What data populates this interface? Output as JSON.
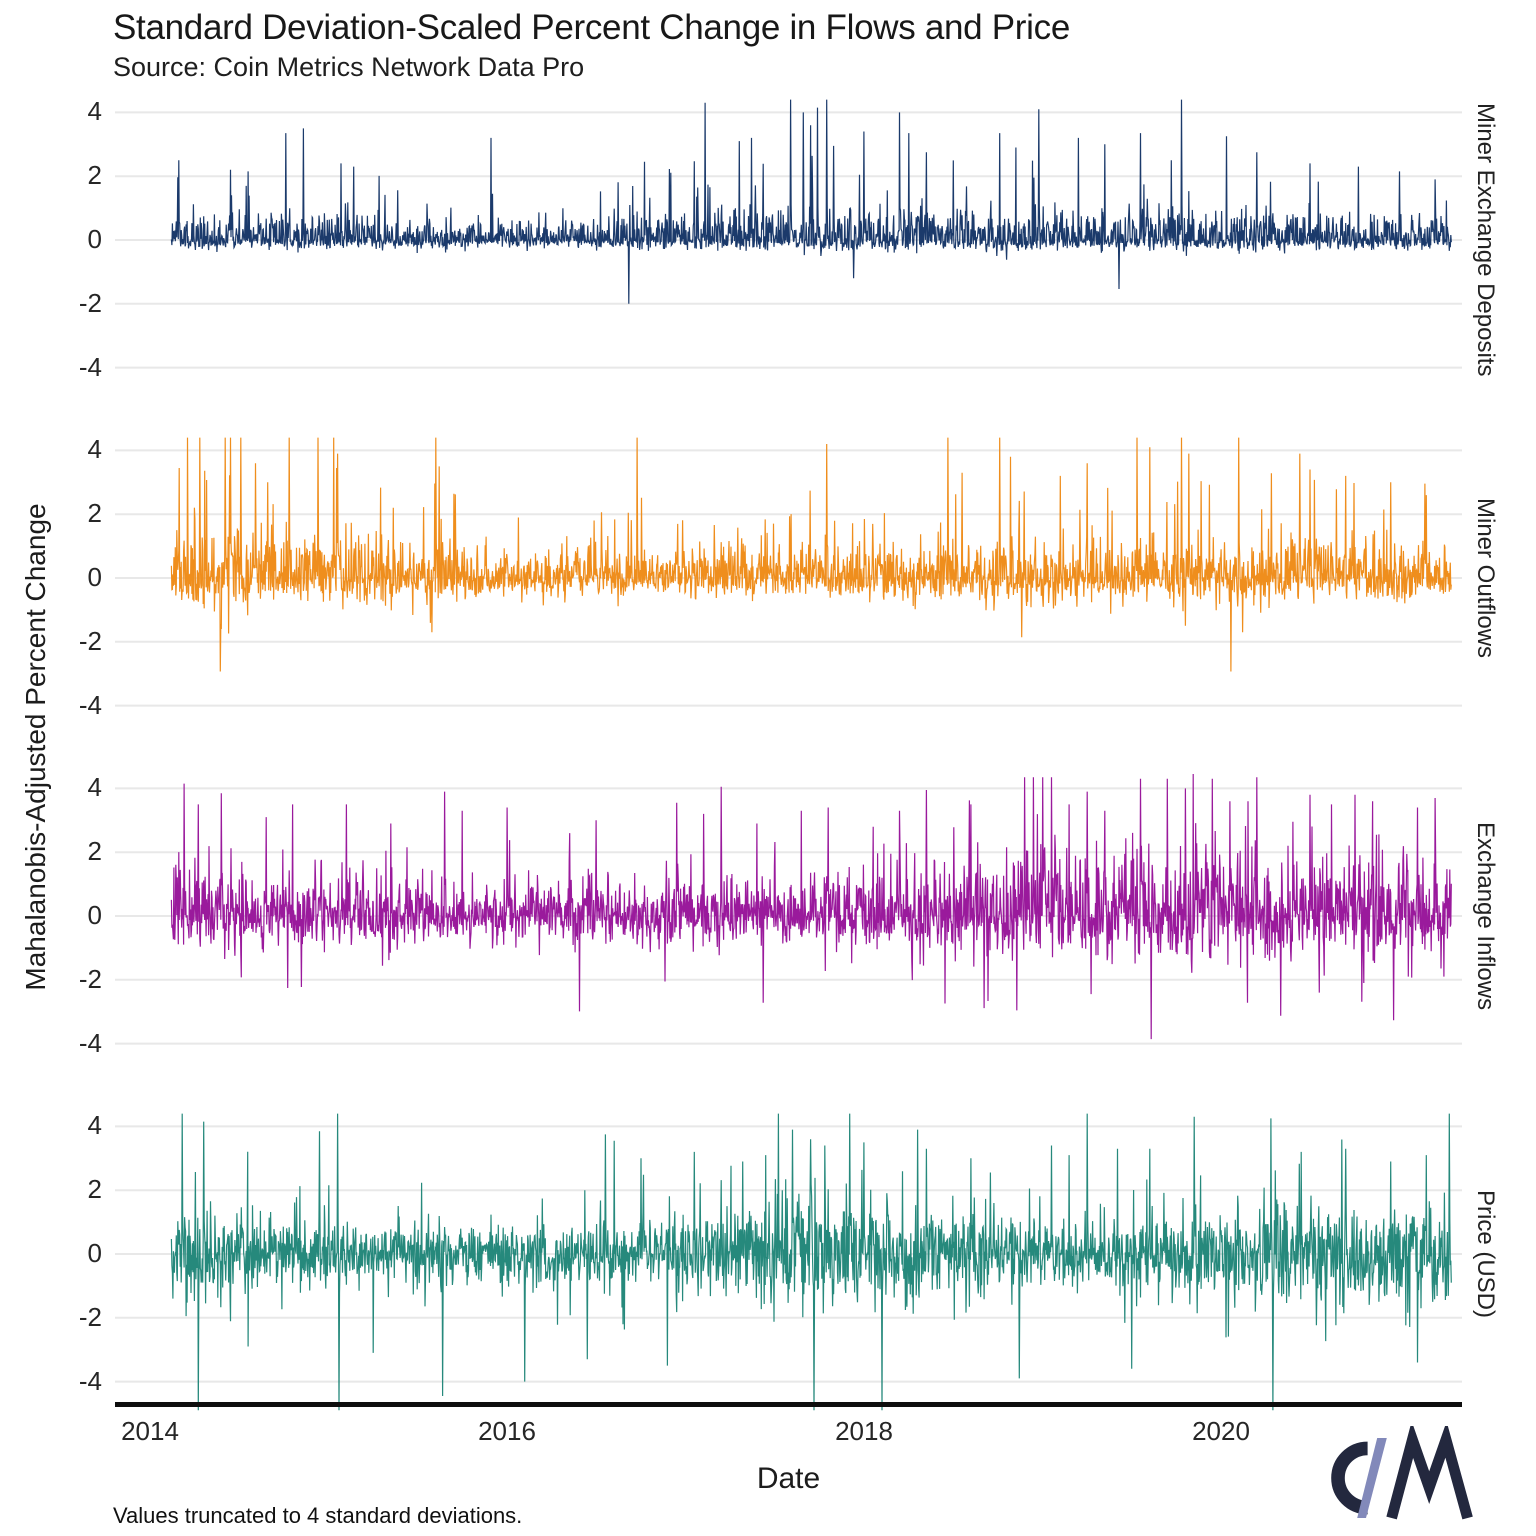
{
  "chart_data": {
    "type": "line",
    "title": "Standard Deviation-Scaled Percent Change in Flows and Price",
    "source": "Source: Coin Metrics Network Data Pro",
    "xlabel": "Date",
    "ylabel": "Mahalanobis-Adjusted Percent Change",
    "note": "Values truncated to 4 standard deviations.",
    "x_ticks": [
      2014,
      2016,
      2018,
      2020
    ],
    "y_ticks": [
      4,
      2,
      0,
      -2,
      -4
    ],
    "x_data_range": [
      2014.12,
      2021.29
    ],
    "y_range": [
      -4.75,
      4.75
    ],
    "cap": 4.45,
    "n_points": 2620,
    "grid_color": "#e8e8e8",
    "series": [
      {
        "name": "Miner Exchange Deposits",
        "color": "#1b3a6b",
        "seed": 101,
        "pos_scale": 0.4,
        "neg_scale": 0.15,
        "spike_prob": 0.05,
        "spike_mag": 2.0,
        "neg_spike_share": 0.04,
        "envelope": [
          [
            2014.1,
            1.0
          ],
          [
            2014.9,
            1.05
          ],
          [
            2015.3,
            0.8
          ],
          [
            2016.3,
            0.75
          ],
          [
            2016.8,
            1.05
          ],
          [
            2017.2,
            1.3
          ],
          [
            2018.3,
            1.25
          ],
          [
            2019.0,
            1.15
          ],
          [
            2020.0,
            1.05
          ],
          [
            2021.3,
            0.95
          ]
        ],
        "spikes": [
          [
            2014.16,
            2.5
          ],
          [
            2014.45,
            2.2
          ],
          [
            2014.55,
            2.15
          ],
          [
            2014.76,
            3.35
          ],
          [
            2014.86,
            3.5
          ],
          [
            2015.07,
            2.4
          ],
          [
            2015.14,
            2.3
          ],
          [
            2015.91,
            3.2
          ],
          [
            2016.77,
            2.45
          ],
          [
            2017.11,
            4.3
          ],
          [
            2017.3,
            3.1
          ],
          [
            2017.37,
            3.2
          ],
          [
            2017.59,
            4.4
          ],
          [
            2017.66,
            4.0
          ],
          [
            2017.7,
            3.6
          ],
          [
            2017.74,
            4.15
          ],
          [
            2017.79,
            4.4
          ],
          [
            2017.83,
            2.95
          ],
          [
            2018.0,
            3.4
          ],
          [
            2018.2,
            4.0
          ],
          [
            2018.25,
            3.35
          ],
          [
            2018.35,
            2.75
          ],
          [
            2018.76,
            3.35
          ],
          [
            2018.85,
            2.9
          ],
          [
            2018.98,
            4.1
          ],
          [
            2019.2,
            3.2
          ],
          [
            2019.35,
            3.0
          ],
          [
            2019.55,
            3.35
          ],
          [
            2019.72,
            2.5
          ],
          [
            2019.78,
            4.4
          ],
          [
            2020.03,
            3.25
          ],
          [
            2020.2,
            2.75
          ],
          [
            2020.5,
            2.4
          ],
          [
            2020.77,
            2.3
          ],
          [
            2021.0,
            2.15
          ],
          [
            2021.2,
            1.9
          ]
        ]
      },
      {
        "name": "Miner Outflows",
        "color": "#ef8e1d",
        "seed": 202,
        "pos_scale": 0.5,
        "neg_scale": 0.32,
        "spike_prob": 0.08,
        "spike_mag": 2.4,
        "neg_spike_share": 0.12,
        "envelope": [
          [
            2014.1,
            1.5
          ],
          [
            2015.2,
            1.3
          ],
          [
            2016.0,
            1.0
          ],
          [
            2016.6,
            0.85
          ],
          [
            2017.3,
            0.95
          ],
          [
            2018.0,
            1.0
          ],
          [
            2019.0,
            1.1
          ],
          [
            2019.8,
            1.2
          ],
          [
            2020.5,
            1.15
          ],
          [
            2021.3,
            1.05
          ]
        ],
        "spikes": [
          [
            2014.21,
            4.4
          ],
          [
            2014.28,
            4.4
          ],
          [
            2014.42,
            4.4
          ],
          [
            2014.45,
            4.4
          ],
          [
            2014.51,
            4.4
          ],
          [
            2014.59,
            3.6
          ],
          [
            2014.78,
            4.4
          ],
          [
            2014.94,
            4.4
          ],
          [
            2015.03,
            4.4
          ],
          [
            2015.05,
            3.9
          ],
          [
            2015.6,
            4.4
          ],
          [
            2015.62,
            3.5
          ],
          [
            2016.73,
            4.4
          ],
          [
            2017.79,
            4.2
          ],
          [
            2018.47,
            4.4
          ],
          [
            2018.55,
            3.3
          ],
          [
            2018.76,
            4.4
          ],
          [
            2018.82,
            3.8
          ],
          [
            2019.1,
            3.2
          ],
          [
            2019.25,
            3.6
          ],
          [
            2019.53,
            4.4
          ],
          [
            2019.6,
            4.1
          ],
          [
            2019.78,
            4.4
          ],
          [
            2019.82,
            3.9
          ],
          [
            2020.1,
            4.4
          ],
          [
            2020.44,
            3.9
          ],
          [
            2020.5,
            3.4
          ],
          [
            2020.7,
            3.2
          ],
          [
            2020.95,
            3.0
          ],
          [
            2021.15,
            2.6
          ],
          [
            2014.4,
            -1.6
          ],
          [
            2015.58,
            -1.7
          ],
          [
            2019.8,
            -1.5
          ],
          [
            2020.12,
            -1.7
          ]
        ]
      },
      {
        "name": "Exchange Inflows",
        "color": "#9a1a9c",
        "seed": 303,
        "pos_scale": 0.6,
        "neg_scale": 0.45,
        "spike_prob": 0.1,
        "spike_mag": 2.2,
        "neg_spike_share": 0.3,
        "envelope": [
          [
            2014.1,
            1.1
          ],
          [
            2015.0,
            0.95
          ],
          [
            2016.0,
            0.85
          ],
          [
            2017.0,
            0.95
          ],
          [
            2018.0,
            1.05
          ],
          [
            2018.8,
            1.45
          ],
          [
            2019.6,
            1.55
          ],
          [
            2020.3,
            1.5
          ],
          [
            2021.3,
            1.35
          ]
        ],
        "spikes": [
          [
            2014.19,
            4.15
          ],
          [
            2014.27,
            3.5
          ],
          [
            2014.4,
            3.85
          ],
          [
            2014.65,
            3.1
          ],
          [
            2014.8,
            3.5
          ],
          [
            2015.1,
            3.5
          ],
          [
            2015.35,
            2.9
          ],
          [
            2015.65,
            3.9
          ],
          [
            2015.75,
            3.3
          ],
          [
            2016.0,
            3.4
          ],
          [
            2016.35,
            2.6
          ],
          [
            2016.5,
            3.0
          ],
          [
            2016.95,
            3.55
          ],
          [
            2017.1,
            3.2
          ],
          [
            2017.2,
            4.05
          ],
          [
            2017.4,
            2.9
          ],
          [
            2017.65,
            3.3
          ],
          [
            2017.8,
            3.4
          ],
          [
            2018.05,
            2.8
          ],
          [
            2018.2,
            3.3
          ],
          [
            2018.35,
            3.95
          ],
          [
            2018.6,
            3.5
          ],
          [
            2018.9,
            4.35
          ],
          [
            2018.95,
            4.35
          ],
          [
            2019.0,
            4.35
          ],
          [
            2019.05,
            4.35
          ],
          [
            2019.15,
            3.5
          ],
          [
            2019.25,
            3.9
          ],
          [
            2019.35,
            3.3
          ],
          [
            2019.55,
            4.3
          ],
          [
            2019.7,
            4.3
          ],
          [
            2019.8,
            4.0
          ],
          [
            2019.95,
            4.3
          ],
          [
            2020.05,
            3.6
          ],
          [
            2020.15,
            3.6
          ],
          [
            2020.2,
            4.35
          ],
          [
            2020.5,
            3.8
          ],
          [
            2020.62,
            3.5
          ],
          [
            2020.75,
            3.8
          ],
          [
            2020.85,
            3.6
          ],
          [
            2021.1,
            3.4
          ],
          [
            2021.2,
            3.7
          ],
          [
            2020.55,
            -2.4
          ],
          [
            2020.8,
            -2.1
          ],
          [
            2021.05,
            -1.9
          ],
          [
            2021.25,
            -1.9
          ]
        ]
      },
      {
        "name": "Price (USD)",
        "color": "#26897c",
        "seed": 404,
        "pos_scale": 0.55,
        "neg_scale": 0.55,
        "spike_prob": 0.07,
        "spike_mag": 2.3,
        "neg_spike_share": 0.45,
        "envelope": [
          [
            2014.1,
            1.15
          ],
          [
            2015.0,
            0.85
          ],
          [
            2016.2,
            0.8
          ],
          [
            2017.0,
            1.05
          ],
          [
            2017.8,
            1.45
          ],
          [
            2018.4,
            1.35
          ],
          [
            2019.0,
            1.0
          ],
          [
            2019.6,
            1.1
          ],
          [
            2020.1,
            1.25
          ],
          [
            2020.35,
            1.45
          ],
          [
            2021.3,
            1.35
          ]
        ],
        "spikes": [
          [
            2014.18,
            4.4
          ],
          [
            2014.3,
            4.15
          ],
          [
            2014.95,
            3.85
          ],
          [
            2015.05,
            4.4
          ],
          [
            2016.1,
            3.3
          ],
          [
            2016.55,
            3.75
          ],
          [
            2016.6,
            3.55
          ],
          [
            2016.75,
            3.0
          ],
          [
            2017.05,
            3.2
          ],
          [
            2017.32,
            2.9
          ],
          [
            2017.45,
            3.1
          ],
          [
            2017.52,
            4.4
          ],
          [
            2017.6,
            3.9
          ],
          [
            2017.7,
            3.6
          ],
          [
            2017.78,
            3.4
          ],
          [
            2017.92,
            4.4
          ],
          [
            2018.0,
            3.5
          ],
          [
            2018.3,
            3.9
          ],
          [
            2018.35,
            3.3
          ],
          [
            2018.6,
            3.0
          ],
          [
            2019.05,
            3.4
          ],
          [
            2019.15,
            3.1
          ],
          [
            2019.25,
            4.4
          ],
          [
            2019.42,
            3.3
          ],
          [
            2019.6,
            3.3
          ],
          [
            2019.85,
            4.3
          ],
          [
            2020.28,
            4.25
          ],
          [
            2020.45,
            3.2
          ],
          [
            2020.7,
            3.3
          ],
          [
            2020.95,
            2.9
          ],
          [
            2021.15,
            3.1
          ],
          [
            2021.28,
            4.4
          ],
          [
            2014.27,
            -4.9
          ],
          [
            2015.06,
            -4.9
          ],
          [
            2015.64,
            -4.45
          ],
          [
            2016.1,
            -4.0
          ],
          [
            2016.45,
            -3.3
          ],
          [
            2016.9,
            -3.5
          ],
          [
            2017.72,
            -4.9
          ],
          [
            2018.1,
            -4.9
          ],
          [
            2018.87,
            -3.9
          ],
          [
            2019.5,
            -3.6
          ],
          [
            2020.29,
            -4.9
          ],
          [
            2021.1,
            -3.4
          ],
          [
            2014.55,
            -2.9
          ],
          [
            2015.25,
            -3.1
          ]
        ]
      }
    ]
  },
  "logo": {
    "name": "Coin Metrics logo",
    "letter_c_color": "#23283e",
    "slash_color": "#8289ba",
    "letter_m_color": "#23283e"
  }
}
